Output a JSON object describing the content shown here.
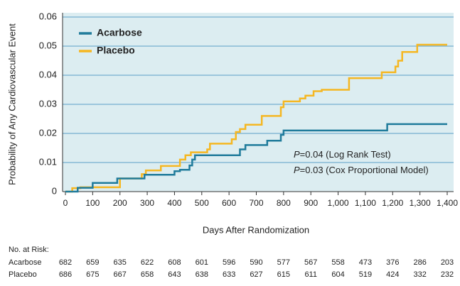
{
  "chart_data": {
    "type": "line",
    "step": "post",
    "xlabel": "Days After Randomization",
    "ylabel": "Probability of Any Cardiovascular Event",
    "xlim": [
      0,
      1400
    ],
    "ylim": [
      0,
      0.06
    ],
    "xticks": [
      0,
      100,
      200,
      300,
      400,
      500,
      600,
      700,
      800,
      900,
      {
        "value": 1000,
        "label": "1,000"
      },
      {
        "value": 1100,
        "label": "1,100"
      },
      {
        "value": 1200,
        "label": "1,200"
      },
      {
        "value": 1300,
        "label": "1,300"
      },
      {
        "value": 1400,
        "label": "1,400"
      }
    ],
    "yticks": [
      0,
      0.01,
      0.02,
      0.03,
      0.04,
      0.05,
      0.06
    ],
    "grid": true,
    "legend": "upper left",
    "series": [
      {
        "name": "Acarbose",
        "color": "#1f7b9b",
        "x": [
          0,
          45,
          100,
          190,
          290,
          400,
          420,
          455,
          465,
          475,
          640,
          660,
          740,
          790,
          800,
          1180,
          1400
        ],
        "values": [
          0,
          0.0013,
          0.003,
          0.0045,
          0.0058,
          0.007,
          0.0075,
          0.009,
          0.011,
          0.0125,
          0.0145,
          0.016,
          0.0175,
          0.0195,
          0.021,
          0.0232,
          0.0232
        ]
      },
      {
        "name": "Placebo",
        "color": "#f5b722",
        "x": [
          0,
          25,
          55,
          200,
          280,
          295,
          350,
          420,
          440,
          460,
          520,
          530,
          610,
          625,
          640,
          660,
          720,
          790,
          800,
          860,
          880,
          910,
          940,
          1040,
          1160,
          1210,
          1220,
          1235,
          1290,
          1400
        ],
        "values": [
          0,
          0.0012,
          0.0015,
          0.0045,
          0.006,
          0.0073,
          0.0088,
          0.011,
          0.0125,
          0.0135,
          0.0145,
          0.0165,
          0.018,
          0.0205,
          0.0215,
          0.023,
          0.026,
          0.029,
          0.031,
          0.032,
          0.033,
          0.0345,
          0.035,
          0.039,
          0.041,
          0.043,
          0.045,
          0.048,
          0.0505,
          0.0505
        ]
      }
    ],
    "annotations": [
      {
        "prefix": "P",
        "text": "=0.04 (Log Rank Test)"
      },
      {
        "prefix": "P",
        "text": "=0.03 (Cox Proportional Model)"
      }
    ],
    "risk_table": {
      "title": "No. at Risk:",
      "rows": [
        {
          "name": "Acarbose",
          "values": [
            682,
            659,
            635,
            622,
            608,
            601,
            596,
            590,
            577,
            567,
            558,
            473,
            376,
            286,
            203
          ]
        },
        {
          "name": "Placebo",
          "values": [
            686,
            675,
            667,
            658,
            643,
            638,
            633,
            627,
            615,
            611,
            604,
            519,
            424,
            332,
            232
          ]
        }
      ]
    }
  }
}
